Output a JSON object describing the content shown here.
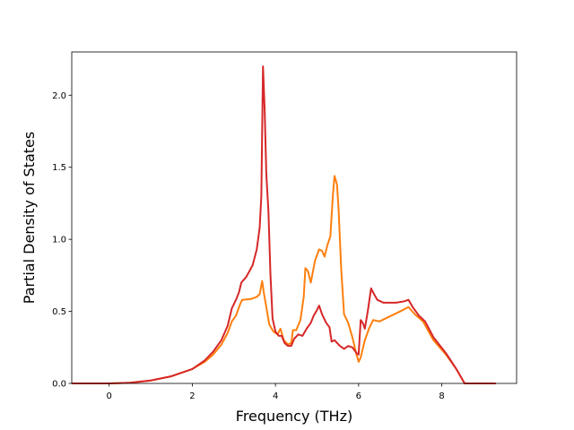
{
  "chart_data": {
    "type": "line",
    "title": "",
    "xlabel": "Frequency (THz)",
    "ylabel": "Partial Density of States",
    "xlim": [
      -0.9,
      9.8
    ],
    "ylim": [
      0.0,
      2.3
    ],
    "xticks": [
      0,
      2,
      4,
      6,
      8
    ],
    "yticks": [
      0.0,
      0.5,
      1.0,
      1.5,
      2.0
    ],
    "xtick_labels": [
      "0",
      "2",
      "4",
      "6",
      "8"
    ],
    "ytick_labels": [
      "0.0",
      "0.5",
      "1.0",
      "1.5",
      "2.0"
    ],
    "grid": false,
    "legend": "none",
    "series": [
      {
        "color": "#ff7f0e",
        "points": [
          [
            -0.9,
            0.0
          ],
          [
            0.0,
            0.0
          ],
          [
            0.5,
            0.005
          ],
          [
            1.0,
            0.02
          ],
          [
            1.5,
            0.05
          ],
          [
            2.0,
            0.1
          ],
          [
            2.3,
            0.15
          ],
          [
            2.5,
            0.2
          ],
          [
            2.7,
            0.27
          ],
          [
            2.85,
            0.35
          ],
          [
            2.95,
            0.43
          ],
          [
            3.05,
            0.47
          ],
          [
            3.15,
            0.55
          ],
          [
            3.2,
            0.58
          ],
          [
            3.4,
            0.585
          ],
          [
            3.55,
            0.6
          ],
          [
            3.62,
            0.62
          ],
          [
            3.68,
            0.71
          ],
          [
            3.72,
            0.63
          ],
          [
            3.78,
            0.53
          ],
          [
            3.85,
            0.41
          ],
          [
            3.95,
            0.36
          ],
          [
            4.05,
            0.34
          ],
          [
            4.12,
            0.38
          ],
          [
            4.2,
            0.3
          ],
          [
            4.3,
            0.27
          ],
          [
            4.38,
            0.28
          ],
          [
            4.42,
            0.37
          ],
          [
            4.5,
            0.37
          ],
          [
            4.6,
            0.44
          ],
          [
            4.68,
            0.6
          ],
          [
            4.72,
            0.8
          ],
          [
            4.78,
            0.78
          ],
          [
            4.85,
            0.7
          ],
          [
            4.95,
            0.85
          ],
          [
            5.05,
            0.93
          ],
          [
            5.12,
            0.92
          ],
          [
            5.18,
            0.88
          ],
          [
            5.25,
            0.96
          ],
          [
            5.32,
            1.02
          ],
          [
            5.38,
            1.3
          ],
          [
            5.42,
            1.44
          ],
          [
            5.48,
            1.38
          ],
          [
            5.52,
            1.2
          ],
          [
            5.58,
            0.8
          ],
          [
            5.65,
            0.48
          ],
          [
            5.75,
            0.42
          ],
          [
            5.85,
            0.32
          ],
          [
            5.95,
            0.2
          ],
          [
            6.0,
            0.15
          ],
          [
            6.05,
            0.18
          ],
          [
            6.15,
            0.3
          ],
          [
            6.25,
            0.38
          ],
          [
            6.35,
            0.44
          ],
          [
            6.5,
            0.43
          ],
          [
            7.0,
            0.5
          ],
          [
            7.2,
            0.53
          ],
          [
            7.35,
            0.48
          ],
          [
            7.55,
            0.43
          ],
          [
            7.8,
            0.3
          ],
          [
            8.1,
            0.2
          ],
          [
            8.35,
            0.1
          ],
          [
            8.45,
            0.05
          ],
          [
            8.55,
            0.0
          ],
          [
            9.3,
            0.0
          ]
        ]
      },
      {
        "color": "#d62728",
        "points": [
          [
            -0.9,
            0.0
          ],
          [
            0.0,
            0.0
          ],
          [
            0.5,
            0.005
          ],
          [
            1.0,
            0.02
          ],
          [
            1.5,
            0.05
          ],
          [
            2.0,
            0.1
          ],
          [
            2.3,
            0.16
          ],
          [
            2.5,
            0.22
          ],
          [
            2.7,
            0.3
          ],
          [
            2.85,
            0.4
          ],
          [
            2.95,
            0.52
          ],
          [
            3.05,
            0.58
          ],
          [
            3.12,
            0.63
          ],
          [
            3.18,
            0.7
          ],
          [
            3.3,
            0.74
          ],
          [
            3.45,
            0.82
          ],
          [
            3.55,
            0.93
          ],
          [
            3.62,
            1.08
          ],
          [
            3.66,
            1.3
          ],
          [
            3.7,
            2.2
          ],
          [
            3.74,
            1.9
          ],
          [
            3.78,
            1.45
          ],
          [
            3.83,
            1.2
          ],
          [
            3.88,
            0.75
          ],
          [
            3.93,
            0.45
          ],
          [
            4.0,
            0.36
          ],
          [
            4.08,
            0.33
          ],
          [
            4.15,
            0.33
          ],
          [
            4.22,
            0.28
          ],
          [
            4.3,
            0.26
          ],
          [
            4.38,
            0.26
          ],
          [
            4.45,
            0.31
          ],
          [
            4.55,
            0.34
          ],
          [
            4.65,
            0.33
          ],
          [
            4.75,
            0.38
          ],
          [
            4.85,
            0.42
          ],
          [
            4.92,
            0.47
          ],
          [
            5.0,
            0.51
          ],
          [
            5.05,
            0.54
          ],
          [
            5.12,
            0.48
          ],
          [
            5.22,
            0.42
          ],
          [
            5.3,
            0.39
          ],
          [
            5.35,
            0.29
          ],
          [
            5.42,
            0.3
          ],
          [
            5.55,
            0.26
          ],
          [
            5.65,
            0.24
          ],
          [
            5.75,
            0.26
          ],
          [
            5.85,
            0.25
          ],
          [
            5.95,
            0.21
          ],
          [
            6.0,
            0.2
          ],
          [
            6.05,
            0.44
          ],
          [
            6.1,
            0.42
          ],
          [
            6.15,
            0.38
          ],
          [
            6.22,
            0.5
          ],
          [
            6.3,
            0.66
          ],
          [
            6.35,
            0.63
          ],
          [
            6.45,
            0.58
          ],
          [
            6.6,
            0.56
          ],
          [
            6.9,
            0.56
          ],
          [
            7.1,
            0.57
          ],
          [
            7.2,
            0.58
          ],
          [
            7.3,
            0.53
          ],
          [
            7.45,
            0.47
          ],
          [
            7.6,
            0.43
          ],
          [
            7.8,
            0.32
          ],
          [
            8.1,
            0.21
          ],
          [
            8.35,
            0.1
          ],
          [
            8.45,
            0.05
          ],
          [
            8.55,
            0.0
          ],
          [
            9.3,
            0.0
          ]
        ]
      }
    ]
  }
}
